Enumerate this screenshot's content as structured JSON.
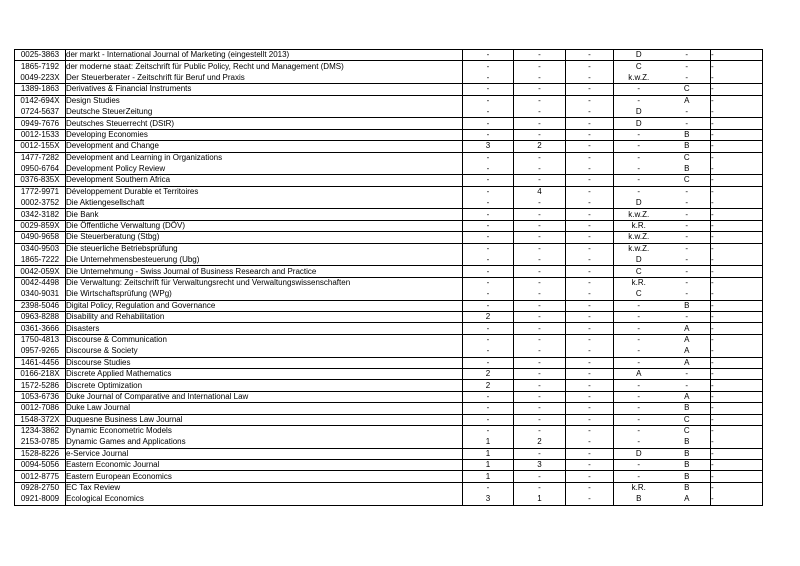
{
  "page": {
    "background_color": "#ffffff",
    "text_color": "#000000",
    "border_color": "#000000"
  },
  "table": {
    "description": "Journal rating list segment (ISSN, journal title, six rating columns, no header row visible)",
    "rows": [
      {
        "issn": "0025-3863",
        "name": "der markt - International Journal of Marketing (eingestellt 2013)",
        "values": [
          "-",
          "-",
          "-",
          "D",
          "-",
          "-"
        ],
        "group_end": true
      },
      {
        "issn": "1865-7192",
        "name": "der moderne staat: Zeitschrift für Public Policy, Recht und Management (DMS)",
        "values": [
          "-",
          "-",
          "-",
          "C",
          "-",
          "-"
        ],
        "group_end": false
      },
      {
        "issn": "0049-223X",
        "name": "Der Steuerberater - Zeitschrift für Beruf und Praxis",
        "values": [
          "-",
          "-",
          "-",
          "k.w.Z.",
          "-",
          "-"
        ],
        "group_end": true
      },
      {
        "issn": "1389-1863",
        "name": "Derivatives & Financial Instruments",
        "values": [
          "-",
          "-",
          "-",
          "-",
          "C",
          "-"
        ],
        "group_end": true
      },
      {
        "issn": "0142-694X",
        "name": "Design Studies",
        "values": [
          "-",
          "-",
          "-",
          "-",
          "A",
          "-"
        ],
        "group_end": false
      },
      {
        "issn": "0724-5637",
        "name": "Deutsche SteuerZeitung",
        "values": [
          "-",
          "-",
          "-",
          "D",
          "-",
          "-"
        ],
        "group_end": true
      },
      {
        "issn": "0949-7676",
        "name": "Deutsches Steuerrecht (DStR)",
        "values": [
          "-",
          "-",
          "-",
          "D",
          "-",
          "-"
        ],
        "group_end": true
      },
      {
        "issn": "0012-1533",
        "name": "Developing Economies",
        "values": [
          "-",
          "-",
          "-",
          "-",
          "B",
          "-"
        ],
        "group_end": true
      },
      {
        "issn": "0012-155X",
        "name": "Development and Change",
        "values": [
          "3",
          "2",
          "-",
          "-",
          "B",
          "-"
        ],
        "group_end": true
      },
      {
        "issn": "1477-7282",
        "name": "Development and Learning in Organizations",
        "values": [
          "-",
          "-",
          "-",
          "-",
          "C",
          "-"
        ],
        "group_end": false
      },
      {
        "issn": "0950-6764",
        "name": "Development Policy Review",
        "values": [
          "-",
          "-",
          "-",
          "-",
          "B",
          "-"
        ],
        "group_end": true
      },
      {
        "issn": "0376-835X",
        "name": "Development Southern Africa",
        "values": [
          "-",
          "-",
          "-",
          "-",
          "C",
          "-"
        ],
        "group_end": true
      },
      {
        "issn": "1772-9971",
        "name": "Développement Durable et Territoires",
        "values": [
          "-",
          "4",
          "-",
          "-",
          "-",
          "-"
        ],
        "group_end": false
      },
      {
        "issn": "0002-3752",
        "name": "Die Aktiengesellschaft",
        "values": [
          "-",
          "-",
          "-",
          "D",
          "-",
          "-"
        ],
        "group_end": true
      },
      {
        "issn": "0342-3182",
        "name": "Die Bank",
        "values": [
          "-",
          "-",
          "-",
          "k.w.Z.",
          "-",
          "-"
        ],
        "group_end": true
      },
      {
        "issn": "0029-859X",
        "name": "Die Öffentliche Verwaltung (DÖV)",
        "values": [
          "-",
          "-",
          "-",
          "k.R.",
          "-",
          "-"
        ],
        "group_end": true
      },
      {
        "issn": "0490-9658",
        "name": "Die Steuerberatung (Stbg)",
        "values": [
          "-",
          "-",
          "-",
          "k.w.Z.",
          "-",
          "-"
        ],
        "group_end": true
      },
      {
        "issn": "0340-9503",
        "name": "Die steuerliche Betriebsprüfung",
        "values": [
          "-",
          "-",
          "-",
          "k.w.Z.",
          "-",
          "-"
        ],
        "group_end": false
      },
      {
        "issn": "1865-7222",
        "name": "Die Unternehmensbesteuerung (Ubg)",
        "values": [
          "-",
          "-",
          "-",
          "D",
          "-",
          "-"
        ],
        "group_end": true
      },
      {
        "issn": "0042-059X",
        "name": "Die Unternehmung - Swiss Journal of Business Research and Practice",
        "values": [
          "-",
          "-",
          "-",
          "C",
          "-",
          "-"
        ],
        "group_end": true
      },
      {
        "issn": "0042-4498",
        "name": "Die Verwaltung: Zeitschrift für Verwaltungsrecht und Verwaltungswissenschaften",
        "values": [
          "-",
          "-",
          "-",
          "k.R.",
          "-",
          "-"
        ],
        "group_end": false
      },
      {
        "issn": "0340-9031",
        "name": "Die Wirtschaftsprüfung (WPg)",
        "values": [
          "-",
          "-",
          "-",
          "C",
          "-",
          "-"
        ],
        "group_end": true
      },
      {
        "issn": "2398-5046",
        "name": "Digital Policy, Regulation and Governance",
        "values": [
          "-",
          "-",
          "-",
          "-",
          "B",
          "-"
        ],
        "group_end": true
      },
      {
        "issn": "0963-8288",
        "name": "Disability and Rehabilitation",
        "values": [
          "2",
          "-",
          "-",
          "-",
          "-",
          "-"
        ],
        "group_end": true
      },
      {
        "issn": "0361-3666",
        "name": "Disasters",
        "values": [
          "-",
          "-",
          "-",
          "-",
          "A",
          "-"
        ],
        "group_end": true
      },
      {
        "issn": "1750-4813",
        "name": "Discourse & Communication",
        "values": [
          "-",
          "-",
          "-",
          "-",
          "A",
          "-"
        ],
        "group_end": false
      },
      {
        "issn": "0957-9265",
        "name": "Discourse & Society",
        "values": [
          "-",
          "-",
          "-",
          "-",
          "A",
          "-"
        ],
        "group_end": true
      },
      {
        "issn": "1461-4456",
        "name": "Discourse Studies",
        "values": [
          "-",
          "-",
          "-",
          "-",
          "A",
          "-"
        ],
        "group_end": true
      },
      {
        "issn": "0166-218X",
        "name": "Discrete Applied Mathematics",
        "values": [
          "2",
          "-",
          "-",
          "A",
          "-",
          "-"
        ],
        "group_end": true
      },
      {
        "issn": "1572-5286",
        "name": "Discrete Optimization",
        "values": [
          "2",
          "-",
          "-",
          "-",
          "-",
          "-"
        ],
        "group_end": true
      },
      {
        "issn": "1053-6736",
        "name": "Duke Journal of Comparative and International Law",
        "values": [
          "-",
          "-",
          "-",
          "-",
          "A",
          "-"
        ],
        "group_end": true
      },
      {
        "issn": "0012-7086",
        "name": "Duke Law Journal",
        "values": [
          "-",
          "-",
          "-",
          "-",
          "B",
          "-"
        ],
        "group_end": true
      },
      {
        "issn": "1548-372X",
        "name": "Duquesne Business Law Journal",
        "values": [
          "-",
          "-",
          "-",
          "-",
          "C",
          "-"
        ],
        "group_end": true
      },
      {
        "issn": "1234-3862",
        "name": "Dynamic Econometric Models",
        "values": [
          "-",
          "-",
          "-",
          "-",
          "C",
          "-"
        ],
        "group_end": false
      },
      {
        "issn": "2153-0785",
        "name": "Dynamic Games and Applications",
        "values": [
          "1",
          "2",
          "-",
          "-",
          "B",
          "-"
        ],
        "group_end": true
      },
      {
        "issn": "1528-8226",
        "name": "e-Service Journal",
        "values": [
          "1",
          "-",
          "-",
          "D",
          "B",
          "-"
        ],
        "group_end": true
      },
      {
        "issn": "0094-5056",
        "name": "Eastern Economic Journal",
        "values": [
          "1",
          "3",
          "-",
          "-",
          "B",
          "-"
        ],
        "group_end": true
      },
      {
        "issn": "0012-8775",
        "name": "Eastern European Economics",
        "values": [
          "1",
          "-",
          "-",
          "-",
          "B",
          "-"
        ],
        "group_end": true
      },
      {
        "issn": "0928-2750",
        "name": "EC Tax Review",
        "values": [
          "-",
          "-",
          "-",
          "k.R.",
          "B",
          "-"
        ],
        "group_end": false
      },
      {
        "issn": "0921-8009",
        "name": "Ecological Economics",
        "values": [
          "3",
          "1",
          "-",
          "B",
          "A",
          "-"
        ],
        "group_end": true
      }
    ]
  }
}
